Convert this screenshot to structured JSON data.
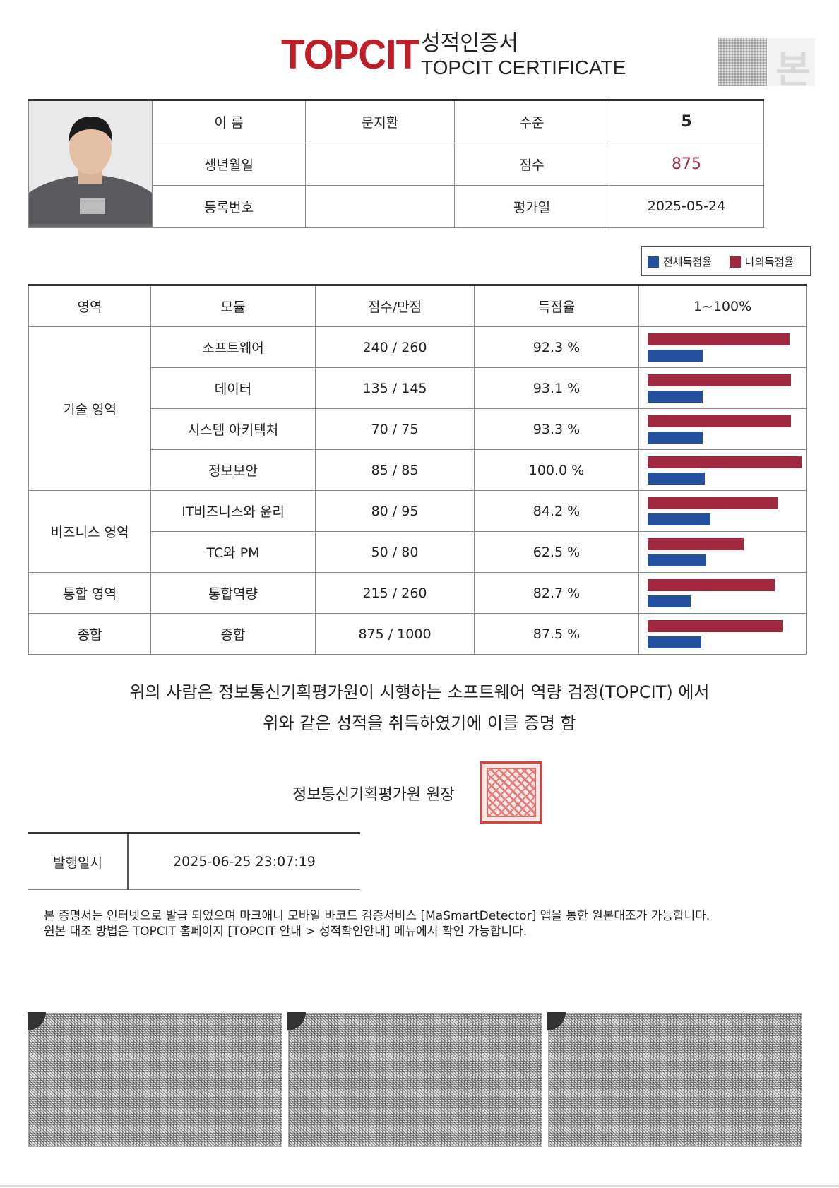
{
  "header": {
    "logo_text": "TOPCIT",
    "title_ko": "성적인증서",
    "title_en": "TOPCIT CERTIFICATE",
    "original_mark": "본"
  },
  "info": {
    "name_label": "이   름",
    "name_value": "문지환",
    "level_label": "수준",
    "level_value": "5",
    "birth_label": "생년월일",
    "birth_value": "",
    "score_label": "점수",
    "score_value": "875",
    "reg_label": "등록번호",
    "reg_value": "",
    "date_label": "평가일",
    "date_value": "2025-05-24"
  },
  "legend": {
    "all_label": "전체득점율",
    "my_label": "나의득점율"
  },
  "colors": {
    "brand": "#c01e26",
    "my_rate": "#a0293f",
    "all_rate": "#2450a0",
    "score_highlight": "#a0293f"
  },
  "table": {
    "headers": [
      "영역",
      "모듈",
      "점수/만점",
      "득점율",
      "1~100%"
    ],
    "areas": {
      "tech": "기술 영역",
      "biz": "비즈니스 영역",
      "integ": "통합 영역",
      "total": "종합"
    },
    "rows": [
      {
        "module": "소프트웨어",
        "score": "240 / 260",
        "rate": "92.3 %",
        "my": 92.3,
        "all": 36
      },
      {
        "module": "데이터",
        "score": "135 / 145",
        "rate": "93.1 %",
        "my": 93.1,
        "all": 36
      },
      {
        "module": "시스템 아키텍처",
        "score": "70 / 75",
        "rate": "93.3 %",
        "my": 93.3,
        "all": 36
      },
      {
        "module": "정보보안",
        "score": "85 / 85",
        "rate": "100.0 %",
        "my": 100.0,
        "all": 37
      },
      {
        "module": "IT비즈니스와 윤리",
        "score": "80 / 95",
        "rate": "84.2 %",
        "my": 84.2,
        "all": 41
      },
      {
        "module": "TC와 PM",
        "score": "50 / 80",
        "rate": "62.5 %",
        "my": 62.5,
        "all": 38
      },
      {
        "module": "통합역량",
        "score": "215 / 260",
        "rate": "82.7 %",
        "my": 82.7,
        "all": 28
      },
      {
        "module": "종합",
        "score": "875 / 1000",
        "rate": "87.5 %",
        "my": 87.5,
        "all": 35
      }
    ]
  },
  "statement": {
    "line1": "위의 사람은 정보통신기획평가원이 시행하는 소프트웨어 역량 검정(TOPCIT) 에서",
    "line2": "위와 같은 성적을 취득하였기에 이를 증명 함"
  },
  "issuer": "정보통신기획평가원 원장",
  "issue": {
    "label": "발행일시",
    "value": "2025-06-25 23:07:19"
  },
  "notes": {
    "line1": "본 증명서는 인터넷으로 발급 되었으며 마크애니 모바일 바코드 검증서비스 [MaSmartDetector] 앱을 통한 원본대조가 가능합니다.",
    "line2": "원본 대조 방법은 TOPCIT 홈페이지 [TOPCIT 안내 > 성적확인안내] 메뉴에서 확인 가능합니다."
  }
}
